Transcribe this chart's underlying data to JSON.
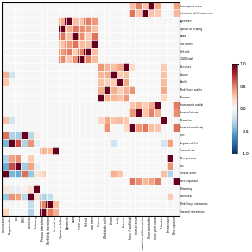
{
  "x_labels": [
    "Positive affect",
    "Negative affect",
    "PSS",
    "WHO",
    "Loneliness",
    "Distancing",
    "Personal interactions",
    "Work/study interactions",
    "Personal care",
    "Opinion on helping",
    "Agreement",
    "News",
    "COVID total",
    "Self-risk",
    "Risk others",
    "Finances",
    "Work/study quality",
    "Leisure",
    "Family",
    "Exercises",
    "Hours of work/study",
    "Hours of leisure",
    "Interaction with housemates",
    "Hours spent online",
    "Hours spent outside",
    "Relaxation",
    "Time pressure",
    "Time expansion"
  ],
  "y_labels_right": [
    "Hours spent on",
    "Interaction with housemate",
    "Agreement",
    "Opinion on help",
    "N",
    "Risk oth",
    "Self-",
    "COVID t",
    "Exerci",
    "Leis",
    "Fam",
    "Work/study qu",
    "Finan",
    "Hours spent outs",
    "Hours of leis",
    "Relaxat",
    "Hours of workst",
    "B",
    "Negative aff",
    "Personal c",
    "Time pres",
    "W",
    "Positive af",
    "Time expans",
    "Distanc",
    "Lonelin",
    "Work/study interacti",
    "Personal interacti"
  ],
  "colormap": "RdBu_r",
  "vmin": -1.0,
  "vmax": 1.0,
  "colorbar_ticks": [
    1.0,
    0.5,
    0.0,
    -0.5,
    -1.0
  ],
  "background": "#ffffff",
  "figsize": [
    3.2,
    3.2
  ],
  "dpi": 100
}
